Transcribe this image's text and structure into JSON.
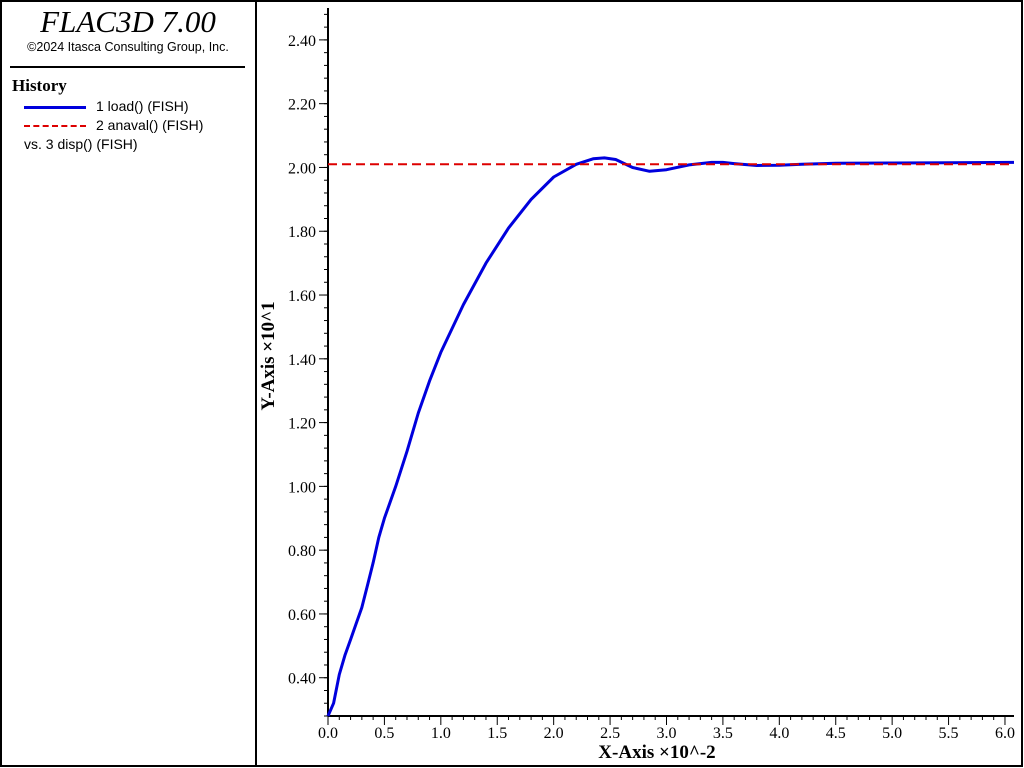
{
  "app": {
    "title": "FLAC3D 7.00",
    "copyright": "©2024 Itasca Consulting Group, Inc."
  },
  "legend": {
    "heading": "History",
    "entries": [
      {
        "label": "1 load() (FISH)",
        "color": "#0000dd",
        "style": "solid"
      },
      {
        "label": "2 anaval() (FISH)",
        "color": "#dd0000",
        "style": "dashed"
      }
    ],
    "vs_label": "vs. 3 disp() (FISH)"
  },
  "chart_data": {
    "type": "line",
    "xlabel": "X-Axis ×10^-2",
    "ylabel": "Y-Axis ×10^1",
    "xlim": [
      0.0,
      6.08
    ],
    "ylim": [
      0.28,
      2.5
    ],
    "x_ticks": [
      "0.0",
      "0.5",
      "1.0",
      "1.5",
      "2.0",
      "2.5",
      "3.0",
      "3.5",
      "4.0",
      "4.5",
      "5.0",
      "5.5",
      "6.0"
    ],
    "y_ticks": [
      "0.40",
      "0.60",
      "0.80",
      "1.00",
      "1.20",
      "1.40",
      "1.60",
      "1.80",
      "2.00",
      "2.20",
      "2.40"
    ],
    "grid": false,
    "series": [
      {
        "name": "1 load() (FISH)",
        "color": "#0000dd",
        "style": "solid",
        "x": [
          0.0,
          0.05,
          0.1,
          0.15,
          0.2,
          0.25,
          0.3,
          0.35,
          0.4,
          0.45,
          0.5,
          0.6,
          0.7,
          0.8,
          0.9,
          1.0,
          1.2,
          1.4,
          1.6,
          1.8,
          2.0,
          2.2,
          2.35,
          2.45,
          2.55,
          2.7,
          2.85,
          3.0,
          3.2,
          3.4,
          3.5,
          3.6,
          3.8,
          4.0,
          4.2,
          4.5,
          5.0,
          5.5,
          6.08
        ],
        "y": [
          0.28,
          0.32,
          0.41,
          0.47,
          0.52,
          0.57,
          0.62,
          0.69,
          0.76,
          0.84,
          0.9,
          1.0,
          1.11,
          1.23,
          1.33,
          1.42,
          1.57,
          1.7,
          1.81,
          1.9,
          1.97,
          2.01,
          2.027,
          2.03,
          2.025,
          2.0,
          1.988,
          1.993,
          2.008,
          2.016,
          2.016,
          2.012,
          2.006,
          2.007,
          2.01,
          2.013,
          2.014,
          2.015,
          2.016
        ]
      },
      {
        "name": "2 anaval() (FISH)",
        "color": "#dd0000",
        "style": "dashed",
        "x": [
          0.0,
          6.08
        ],
        "y": [
          2.01,
          2.01
        ]
      }
    ]
  }
}
